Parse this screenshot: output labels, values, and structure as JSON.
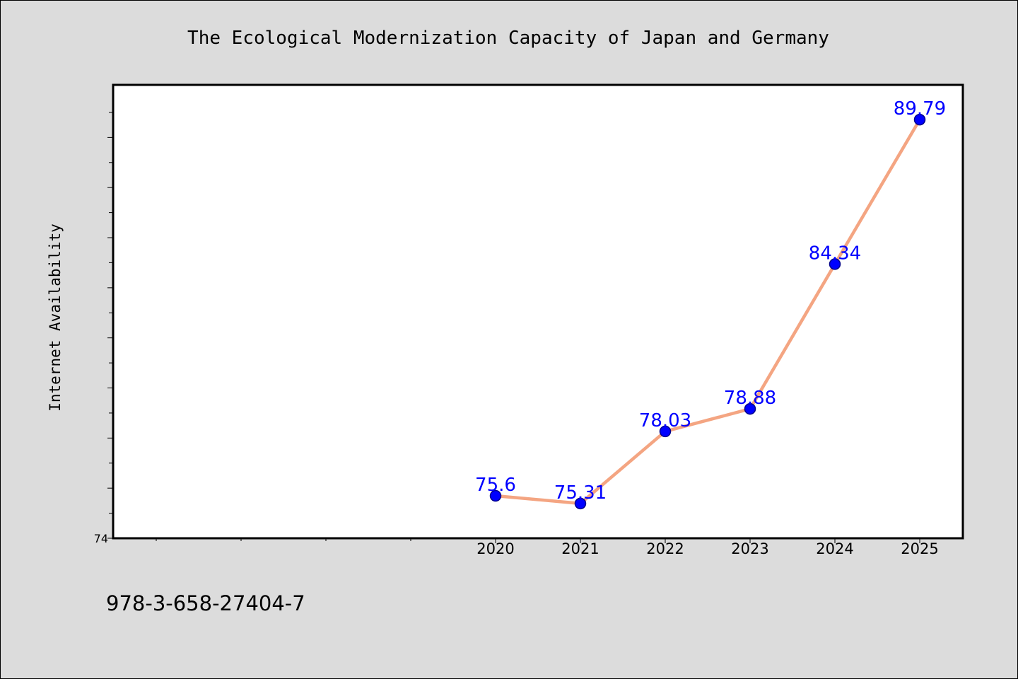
{
  "chart_data": {
    "type": "line",
    "title": "The Ecological Modernization Capacity of Japan and Germany",
    "xlabel": "",
    "ylabel": "Internet Availability",
    "categories": [
      "2020",
      "2021",
      "2022",
      "2023",
      "2024",
      "2025"
    ],
    "series": [
      {
        "values": [
          75.6,
          75.31,
          78.03,
          78.88,
          84.34,
          89.79
        ],
        "labels": [
          "75.6",
          "75.31",
          "78.03",
          "78.88",
          "84.34",
          "89.79"
        ]
      }
    ],
    "ylim": [
      74,
      91.1
    ],
    "yticks_labeled": [
      "74"
    ],
    "grid": false,
    "legend": "none",
    "colors": {
      "line": "#f4a582",
      "marker": "#0000ff",
      "data_label": "#0000ff",
      "plot_background": "#ffffff",
      "figure_background": "#dcdcdc"
    }
  },
  "footnote": "978-3-658-27404-7"
}
